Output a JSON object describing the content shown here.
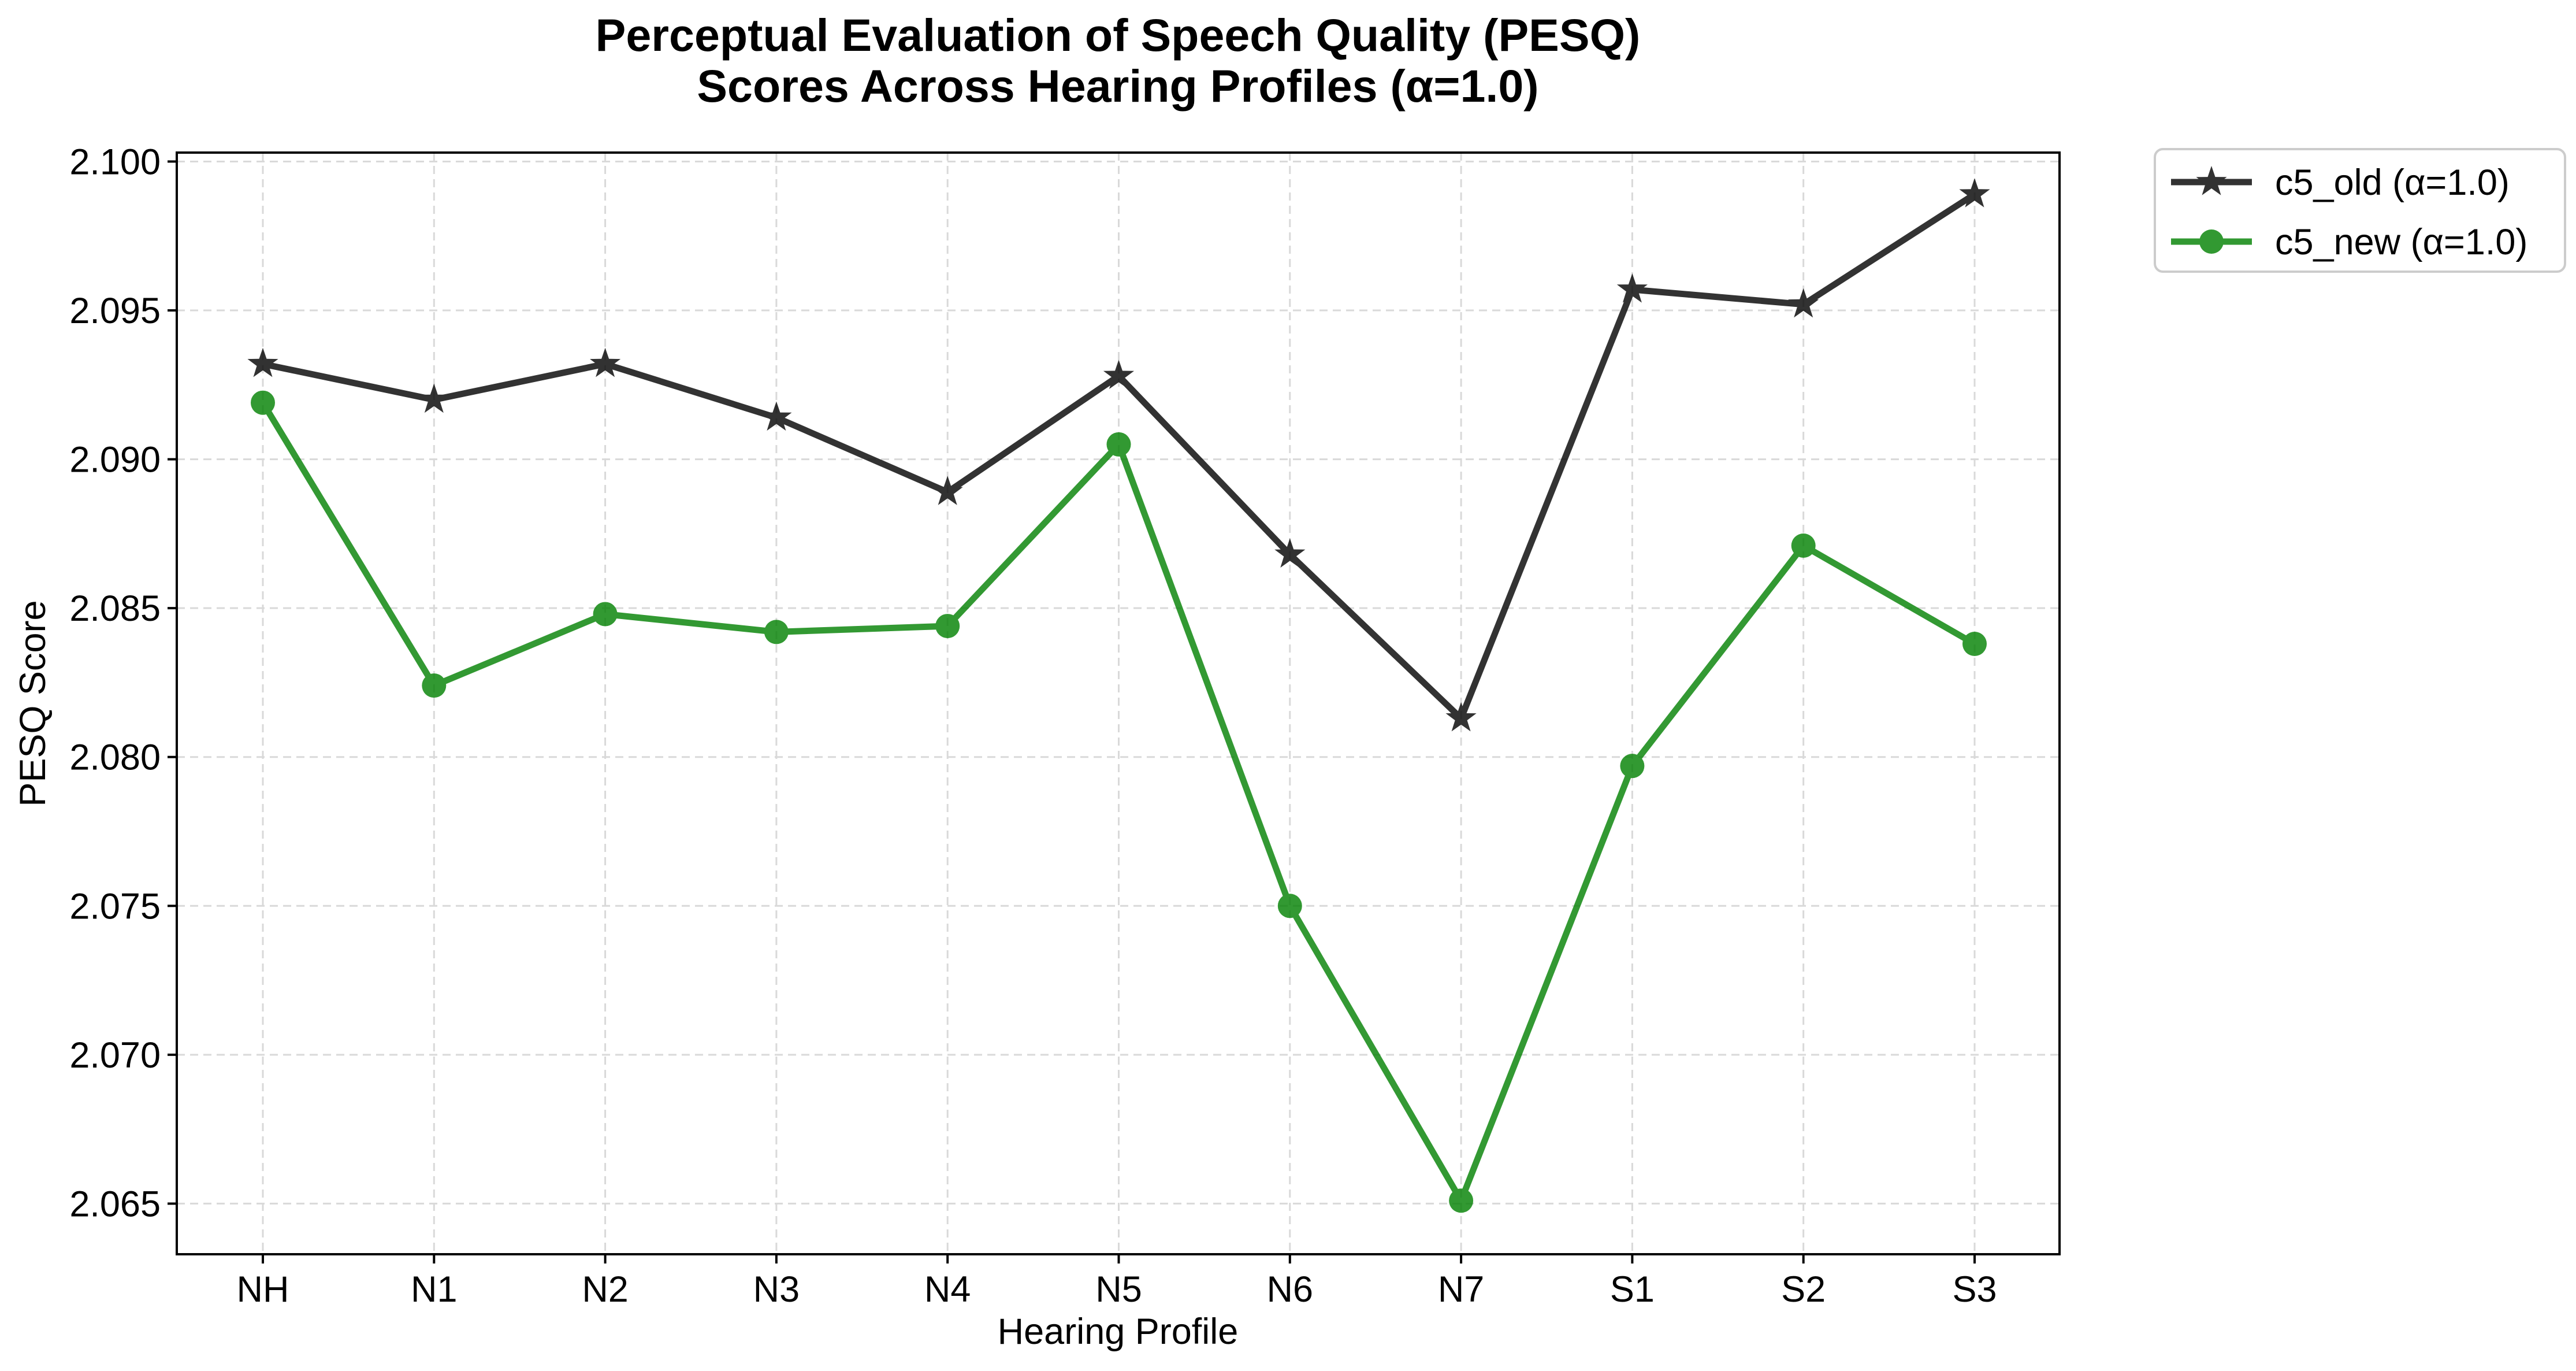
{
  "chart_data": {
    "type": "line",
    "title": [
      "Perceptual Evaluation of Speech Quality (PESQ)",
      "Scores Across Hearing Profiles (α=1.0)"
    ],
    "xlabel": "Hearing Profile",
    "ylabel": "PESQ Score",
    "categories": [
      "NH",
      "N1",
      "N2",
      "N3",
      "N4",
      "N5",
      "N6",
      "N7",
      "S1",
      "S2",
      "S3"
    ],
    "ylim": [
      2.0633,
      2.1003
    ],
    "yticks": [
      2.065,
      2.07,
      2.075,
      2.08,
      2.085,
      2.09,
      2.095,
      2.1
    ],
    "ytick_labels": [
      "2.065",
      "2.070",
      "2.075",
      "2.080",
      "2.085",
      "2.090",
      "2.095",
      "2.100"
    ],
    "grid": true,
    "legend_position": "outside-top-right",
    "series": [
      {
        "name": "c5_old (α=1.0)",
        "color": "#000000",
        "marker": "star",
        "values": [
          2.0932,
          2.092,
          2.0932,
          2.0914,
          2.0889,
          2.0928,
          2.0868,
          2.0813,
          2.0957,
          2.0952,
          2.0989
        ]
      },
      {
        "name": "c5_new (α=1.0)",
        "color": "#008000",
        "marker": "circle",
        "values": [
          2.0919,
          2.0824,
          2.0848,
          2.0842,
          2.0844,
          2.0905,
          2.075,
          2.0651,
          2.0797,
          2.0871,
          2.0838
        ]
      }
    ]
  }
}
